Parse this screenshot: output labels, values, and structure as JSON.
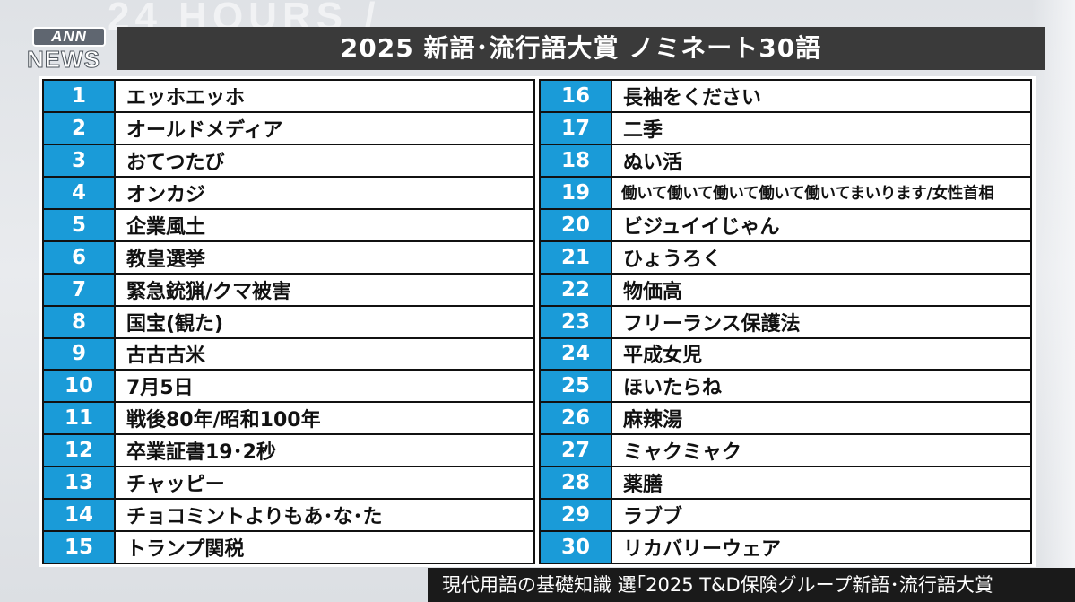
{
  "background": {
    "watermark_text": "24 HOURS /"
  },
  "logo": {
    "top": "ANN",
    "bottom": "NEWS"
  },
  "title": "2025 新語･流行語大賞 ノミネート30語",
  "left_column": [
    {
      "no": "1",
      "word": "エッホエッホ"
    },
    {
      "no": "2",
      "word": "オールドメディア"
    },
    {
      "no": "3",
      "word": "おてつたび"
    },
    {
      "no": "4",
      "word": "オンカジ"
    },
    {
      "no": "5",
      "word": "企業風土"
    },
    {
      "no": "6",
      "word": "教皇選挙"
    },
    {
      "no": "7",
      "word": "緊急銃猟/クマ被害"
    },
    {
      "no": "8",
      "word": "国宝(観た)"
    },
    {
      "no": "9",
      "word": "古古古米"
    },
    {
      "no": "10",
      "word": "7月5日"
    },
    {
      "no": "11",
      "word": "戦後80年/昭和100年"
    },
    {
      "no": "12",
      "word": "卒業証書19･2秒"
    },
    {
      "no": "13",
      "word": "チャッピー"
    },
    {
      "no": "14",
      "word": "チョコミントよりもあ･な･た"
    },
    {
      "no": "15",
      "word": "トランプ関税"
    }
  ],
  "right_column": [
    {
      "no": "16",
      "word": "長袖をください"
    },
    {
      "no": "17",
      "word": "二季"
    },
    {
      "no": "18",
      "word": "ぬい活"
    },
    {
      "no": "19",
      "word": "働いて働いて働いて働いて働いてまいります/女性首相"
    },
    {
      "no": "20",
      "word": "ビジュイイじゃん"
    },
    {
      "no": "21",
      "word": "ひょうろく"
    },
    {
      "no": "22",
      "word": "物価高"
    },
    {
      "no": "23",
      "word": "フリーランス保護法"
    },
    {
      "no": "24",
      "word": "平成女児"
    },
    {
      "no": "25",
      "word": "ほいたらね"
    },
    {
      "no": "26",
      "word": "麻辣湯"
    },
    {
      "no": "27",
      "word": "ミャクミャク"
    },
    {
      "no": "28",
      "word": "薬膳"
    },
    {
      "no": "29",
      "word": "ラブブ"
    },
    {
      "no": "30",
      "word": "リカバリーウェア"
    }
  ],
  "caption": "現代用語の基礎知識 選｢2025 T&D保険グループ新語･流行語大賞",
  "colors": {
    "number_cell": "#1a9bd8",
    "title_bar": "#3a3a3a",
    "caption_bar": "#1a1a1a"
  }
}
